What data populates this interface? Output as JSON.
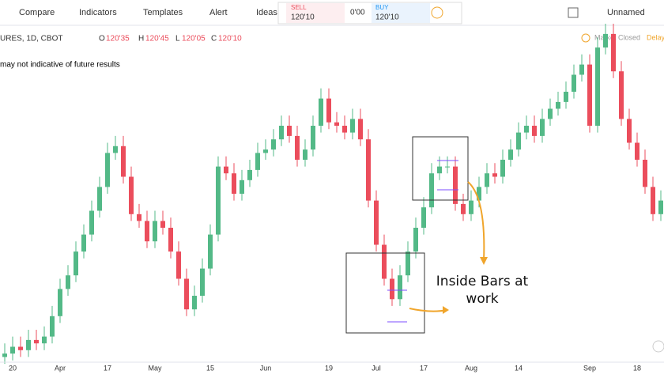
{
  "toolbar": {
    "compare": "Compare",
    "indicators": "Indicators",
    "templates": "Templates",
    "alert": "Alert",
    "ideas": "Ideas",
    "sell_label": "SELL",
    "sell_price": "120'10",
    "spread": "0'00",
    "buy_label": "BUY",
    "buy_price": "120'10",
    "layout_name": "Unnamed"
  },
  "legend": {
    "symbol": "URES, 1D, CBOT",
    "open_label": "O",
    "open": "120'35",
    "high_label": "H",
    "high": "120'45",
    "low_label": "L",
    "low": "120'05",
    "close_label": "C",
    "close": "120'10",
    "disclaimer": "may not indicative of future results",
    "market_status": "Market Closed",
    "delay": "Delay"
  },
  "chart_data": {
    "type": "candlestick",
    "annotation": "Inside Bars at work",
    "up_color": "#53b987",
    "down_color": "#eb4d5c",
    "ylim": [
      0,
      100
    ],
    "categories": [
      null,
      "20",
      null,
      null,
      null,
      null,
      null,
      "Apr",
      null,
      null,
      null,
      null,
      null,
      "17",
      null,
      null,
      null,
      null,
      null,
      "May",
      null,
      null,
      null,
      null,
      null,
      null,
      "15",
      null,
      null,
      null,
      null,
      null,
      null,
      "Jun",
      null,
      null,
      null,
      null,
      null,
      null,
      null,
      "19",
      null,
      null,
      null,
      null,
      null,
      "Jul",
      null,
      null,
      null,
      null,
      null,
      "17",
      null,
      null,
      null,
      null,
      null,
      "Aug",
      null,
      null,
      null,
      null,
      null,
      "14",
      null,
      null,
      null,
      null,
      null,
      null,
      null,
      null,
      "Sep",
      null,
      null,
      null,
      null,
      null,
      "18",
      null,
      null,
      null
    ],
    "open": [
      2,
      3,
      5,
      4,
      7,
      6,
      8,
      14,
      22,
      26,
      33,
      38,
      45,
      52,
      62,
      64,
      55,
      44,
      42,
      36,
      42,
      40,
      33,
      25,
      16,
      20,
      28,
      38,
      58,
      56,
      50,
      54,
      57,
      62,
      63,
      66,
      70,
      67,
      60,
      63,
      70,
      78,
      71,
      70,
      68,
      72,
      66,
      48,
      35,
      25,
      19,
      26,
      33,
      40,
      46,
      56,
      58,
      58,
      47,
      44,
      48,
      52,
      56,
      55,
      60,
      63,
      68,
      70,
      67,
      72,
      75,
      77,
      80,
      85,
      88,
      70,
      93,
      97,
      86,
      72,
      65,
      60,
      52,
      44
    ],
    "high": [
      6,
      8,
      8,
      10,
      10,
      11,
      17,
      25,
      29,
      36,
      41,
      48,
      55,
      65,
      67,
      67,
      58,
      47,
      45,
      45,
      45,
      43,
      36,
      28,
      23,
      31,
      41,
      61,
      61,
      59,
      57,
      60,
      65,
      66,
      69,
      73,
      73,
      70,
      66,
      73,
      81,
      81,
      74,
      73,
      75,
      75,
      69,
      51,
      38,
      28,
      29,
      36,
      43,
      49,
      59,
      61,
      61,
      61,
      50,
      51,
      55,
      59,
      59,
      63,
      66,
      71,
      73,
      73,
      75,
      78,
      80,
      83,
      88,
      91,
      91,
      96,
      100,
      100,
      89,
      75,
      68,
      63,
      55,
      51
    ],
    "low": [
      0,
      1,
      2,
      2,
      4,
      4,
      6,
      12,
      20,
      24,
      31,
      36,
      43,
      50,
      60,
      53,
      42,
      40,
      34,
      34,
      38,
      31,
      23,
      14,
      14,
      18,
      26,
      36,
      54,
      48,
      48,
      52,
      55,
      60,
      61,
      64,
      65,
      58,
      58,
      61,
      68,
      69,
      68,
      66,
      66,
      64,
      46,
      33,
      23,
      17,
      17,
      24,
      31,
      38,
      44,
      54,
      56,
      45,
      42,
      42,
      46,
      50,
      53,
      53,
      58,
      61,
      66,
      65,
      65,
      70,
      73,
      75,
      78,
      83,
      68,
      68,
      91,
      84,
      70,
      63,
      58,
      50,
      42,
      42
    ],
    "close": [
      3,
      5,
      4,
      7,
      6,
      8,
      14,
      22,
      26,
      33,
      38,
      45,
      52,
      62,
      64,
      55,
      44,
      42,
      36,
      42,
      40,
      33,
      25,
      16,
      20,
      28,
      38,
      58,
      56,
      50,
      54,
      57,
      62,
      63,
      66,
      70,
      67,
      60,
      63,
      70,
      78,
      71,
      70,
      68,
      72,
      66,
      48,
      35,
      25,
      19,
      26,
      33,
      40,
      46,
      56,
      58,
      58,
      47,
      44,
      48,
      52,
      56,
      55,
      60,
      63,
      68,
      70,
      67,
      72,
      75,
      77,
      80,
      85,
      88,
      70,
      93,
      97,
      86,
      72,
      65,
      60,
      52,
      44,
      48
    ]
  }
}
